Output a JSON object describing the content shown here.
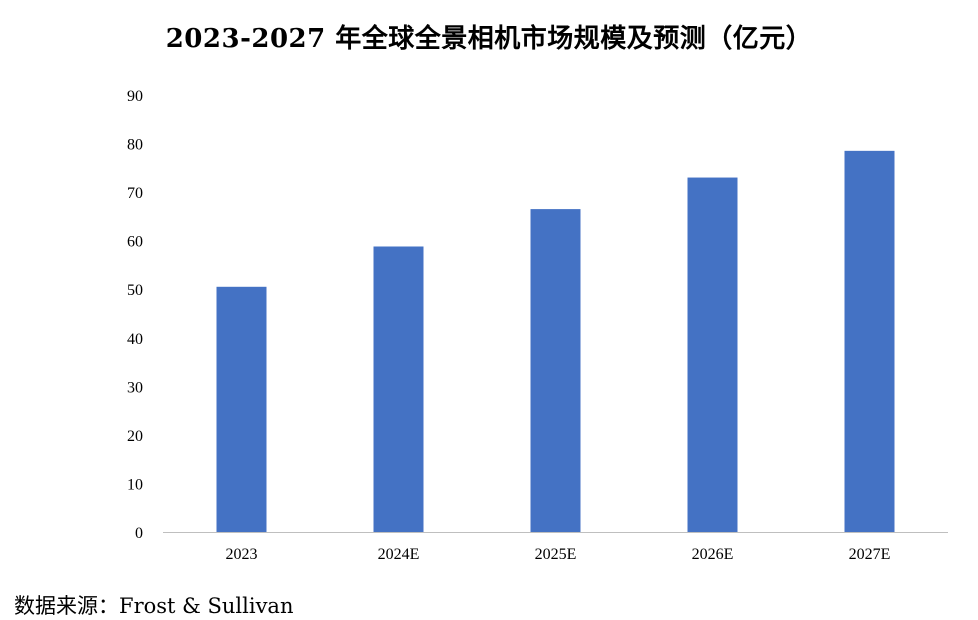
{
  "chart_data": {
    "type": "bar",
    "title": "2023-2027 年全球全景相机市场规模及预测（亿元）",
    "categories": [
      "2023",
      "2024E",
      "2025E",
      "2026E",
      "2027E"
    ],
    "values": [
      50.5,
      58.8,
      66.5,
      73,
      78.5
    ],
    "yticks": [
      "0",
      "10",
      "20",
      "30",
      "40",
      "50",
      "60",
      "70",
      "80",
      "90"
    ],
    "ylim": [
      0,
      90
    ],
    "grid": false,
    "legend": "none",
    "bar_color": "#4472C4",
    "axis_color": "#BFBFBF"
  },
  "source": "数据来源：Frost & Sullivan"
}
